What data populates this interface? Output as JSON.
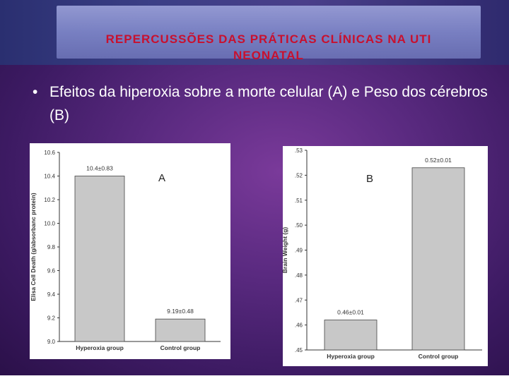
{
  "slide": {
    "title_line1": "REPERCUSSÕES DAS PRÁTICAS CLÍNICAS NA UTI",
    "title_line2": "NEONATAL",
    "bullet_symbol": "•",
    "bullet_text": "Efeitos da hiperoxia sobre a morte celular (A)  e Peso dos cérebros (B)",
    "colors": {
      "title": "#c8102e",
      "text": "#ffffff",
      "bar": "#c8c8c8"
    }
  },
  "chart_data": [
    {
      "type": "bar",
      "panel_label": "A",
      "categories": [
        "Hyperoxia group",
        "Control group"
      ],
      "values": [
        10.4,
        9.19
      ],
      "value_labels": [
        "10.4±0.83",
        "9.19±0.48"
      ],
      "ylabel": "Elisa Cell Death (g/absorbanc protein)",
      "xlabel": "",
      "ylim": [
        9.0,
        10.6
      ],
      "yticks": [
        "9.0",
        "9.2",
        "9.4",
        "9.6",
        "9.8",
        "10.0",
        "10.2",
        "10.4",
        "10.6"
      ],
      "grid": false
    },
    {
      "type": "bar",
      "panel_label": "B",
      "categories": [
        "Hyperoxia group",
        "Control group"
      ],
      "values": [
        0.462,
        0.523
      ],
      "value_labels": [
        "0.46±0.01",
        "0.52±0.01"
      ],
      "ylabel": "Brain Weight (g)",
      "xlabel": "",
      "ylim": [
        0.45,
        0.53
      ],
      "yticks": [
        ".45",
        ".46",
        ".47",
        ".48",
        ".49",
        ".50",
        ".51",
        ".52",
        ".53"
      ],
      "grid": false
    }
  ]
}
